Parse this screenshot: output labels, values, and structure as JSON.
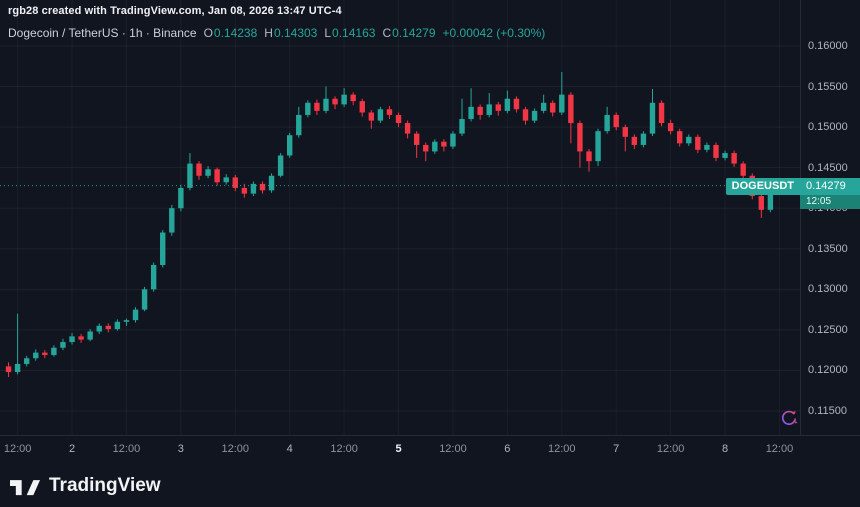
{
  "watermark": "rgb28 created with TradingView.com, Jan 08, 2026 13:47 UTC-4",
  "legend": {
    "title": "Dogecoin / TetherUS · 1h · Binance",
    "o_label": "O",
    "o": "0.14238",
    "h_label": "H",
    "h": "0.14303",
    "l_label": "L",
    "l": "0.14163",
    "c_label": "C",
    "c": "0.14279",
    "change": "+0.00042 (+0.30%)"
  },
  "price_label": {
    "symbol": "DOGEUSDT",
    "price": "0.14279",
    "countdown": "12:05"
  },
  "logo": {
    "text": "TradingView"
  },
  "colors": {
    "background": "#10151f",
    "up": "#26a69a",
    "down": "#f23645",
    "axis_text": "#b2b5be",
    "badge_green": "#26a69a",
    "countdown_green": "#1c8276",
    "refresh_pink": "#e0447e",
    "refresh_purple": "#7b5cff"
  },
  "chart_data": {
    "type": "candlestick",
    "title": "Dogecoin / TetherUS",
    "symbol": "DOGEUSDT",
    "exchange": "Binance",
    "interval": "1h",
    "last_price": 0.14279,
    "open": 0.14238,
    "high": 0.14303,
    "low": 0.14163,
    "close": 0.14279,
    "change_abs": 0.00042,
    "change_pct": 0.3,
    "up_color": "#26a69a",
    "down_color": "#f23645",
    "grid": true,
    "ylim": [
      0.11204,
      0.16567
    ],
    "y_ticks": [
      "0.16000",
      "0.15500",
      "0.15000",
      "0.14500",
      "0.14000",
      "0.13500",
      "0.13000",
      "0.12500",
      "0.12000",
      "0.11500"
    ],
    "x_labels": [
      {
        "i": 1,
        "t": "12:00",
        "s": 0
      },
      {
        "i": 7,
        "t": "2",
        "s": 1
      },
      {
        "i": 13,
        "t": "12:00",
        "s": 0
      },
      {
        "i": 19,
        "t": "3",
        "s": 1
      },
      {
        "i": 25,
        "t": "12:00",
        "s": 0
      },
      {
        "i": 31,
        "t": "4",
        "s": 1
      },
      {
        "i": 37,
        "t": "12:00",
        "s": 0
      },
      {
        "i": 43,
        "t": "5",
        "s": 2
      },
      {
        "i": 49,
        "t": "12:00",
        "s": 0
      },
      {
        "i": 55,
        "t": "6",
        "s": 1
      },
      {
        "i": 61,
        "t": "12:00",
        "s": 0
      },
      {
        "i": 67,
        "t": "7",
        "s": 1
      },
      {
        "i": 73,
        "t": "12:00",
        "s": 0
      },
      {
        "i": 79,
        "t": "8",
        "s": 1
      },
      {
        "i": 85,
        "t": "12:00",
        "s": 0
      }
    ],
    "candles_format": [
      "open",
      "high",
      "low",
      "close"
    ],
    "candles": [
      [
        0.1205,
        0.121,
        0.1192,
        0.1198
      ],
      [
        0.1198,
        0.127,
        0.1195,
        0.1208
      ],
      [
        0.1208,
        0.1218,
        0.1205,
        0.1215
      ],
      [
        0.1215,
        0.1226,
        0.1212,
        0.1222
      ],
      [
        0.1222,
        0.1225,
        0.1215,
        0.1219
      ],
      [
        0.1219,
        0.1231,
        0.1217,
        0.1228
      ],
      [
        0.1228,
        0.1239,
        0.1225,
        0.1235
      ],
      [
        0.1235,
        0.1246,
        0.1232,
        0.1242
      ],
      [
        0.1242,
        0.1245,
        0.1234,
        0.1238
      ],
      [
        0.1238,
        0.1251,
        0.1236,
        0.1248
      ],
      [
        0.1248,
        0.1258,
        0.1245,
        0.1255
      ],
      [
        0.1255,
        0.1258,
        0.1247,
        0.1251
      ],
      [
        0.1251,
        0.1263,
        0.1249,
        0.126
      ],
      [
        0.126,
        0.1264,
        0.1255,
        0.1262
      ],
      [
        0.1262,
        0.1278,
        0.1259,
        0.1275
      ],
      [
        0.1275,
        0.1303,
        0.1273,
        0.13
      ],
      [
        0.13,
        0.1333,
        0.1297,
        0.133
      ],
      [
        0.133,
        0.1373,
        0.1327,
        0.137
      ],
      [
        0.137,
        0.1404,
        0.1366,
        0.14
      ],
      [
        0.14,
        0.1429,
        0.1396,
        0.1425
      ],
      [
        0.1425,
        0.1468,
        0.1422,
        0.1455
      ],
      [
        0.1455,
        0.1458,
        0.1435,
        0.144
      ],
      [
        0.144,
        0.1452,
        0.1437,
        0.1448
      ],
      [
        0.1448,
        0.145,
        0.1428,
        0.1432
      ],
      [
        0.1432,
        0.1442,
        0.1429,
        0.1438
      ],
      [
        0.1438,
        0.1441,
        0.1421,
        0.1425
      ],
      [
        0.1425,
        0.143,
        0.1413,
        0.1418
      ],
      [
        0.1418,
        0.1433,
        0.1415,
        0.143
      ],
      [
        0.143,
        0.1433,
        0.1418,
        0.1422
      ],
      [
        0.1422,
        0.1443,
        0.1419,
        0.144
      ],
      [
        0.144,
        0.1468,
        0.1438,
        0.1465
      ],
      [
        0.1465,
        0.1493,
        0.1462,
        0.149
      ],
      [
        0.149,
        0.1525,
        0.1487,
        0.1515
      ],
      [
        0.1515,
        0.1533,
        0.1512,
        0.153
      ],
      [
        0.153,
        0.1534,
        0.1515,
        0.152
      ],
      [
        0.152,
        0.155,
        0.1517,
        0.1535
      ],
      [
        0.1535,
        0.1538,
        0.1522,
        0.1528
      ],
      [
        0.1528,
        0.1548,
        0.1525,
        0.154
      ],
      [
        0.154,
        0.1543,
        0.1527,
        0.1532
      ],
      [
        0.1532,
        0.1535,
        0.1513,
        0.1518
      ],
      [
        0.1518,
        0.1521,
        0.1498,
        0.1508
      ],
      [
        0.1508,
        0.1525,
        0.1505,
        0.1522
      ],
      [
        0.1522,
        0.1526,
        0.151,
        0.1515
      ],
      [
        0.1515,
        0.1518,
        0.15,
        0.1505
      ],
      [
        0.1505,
        0.1508,
        0.1486,
        0.1492
      ],
      [
        0.1492,
        0.1495,
        0.1462,
        0.1478
      ],
      [
        0.1478,
        0.1481,
        0.1458,
        0.147
      ],
      [
        0.147,
        0.1485,
        0.1467,
        0.1482
      ],
      [
        0.1482,
        0.1485,
        0.147,
        0.1476
      ],
      [
        0.1476,
        0.1495,
        0.1473,
        0.1492
      ],
      [
        0.1492,
        0.1535,
        0.1489,
        0.151
      ],
      [
        0.151,
        0.1548,
        0.1507,
        0.1525
      ],
      [
        0.1525,
        0.1528,
        0.1509,
        0.1515
      ],
      [
        0.1515,
        0.1542,
        0.1512,
        0.1528
      ],
      [
        0.1528,
        0.1531,
        0.1514,
        0.152
      ],
      [
        0.152,
        0.1545,
        0.1517,
        0.1535
      ],
      [
        0.1535,
        0.1538,
        0.1518,
        0.1522
      ],
      [
        0.1522,
        0.1525,
        0.1503,
        0.1508
      ],
      [
        0.1508,
        0.1523,
        0.1505,
        0.152
      ],
      [
        0.152,
        0.154,
        0.1517,
        0.153
      ],
      [
        0.153,
        0.1533,
        0.1513,
        0.1518
      ],
      [
        0.1518,
        0.1568,
        0.1515,
        0.154
      ],
      [
        0.154,
        0.1543,
        0.148,
        0.1505
      ],
      [
        0.1505,
        0.1508,
        0.145,
        0.147
      ],
      [
        0.147,
        0.1473,
        0.1445,
        0.1458
      ],
      [
        0.1458,
        0.1498,
        0.1452,
        0.1495
      ],
      [
        0.1495,
        0.1525,
        0.1492,
        0.1515
      ],
      [
        0.1515,
        0.1518,
        0.1496,
        0.15
      ],
      [
        0.15,
        0.1503,
        0.147,
        0.1488
      ],
      [
        0.1488,
        0.1491,
        0.1473,
        0.1478
      ],
      [
        0.1478,
        0.1495,
        0.1475,
        0.1492
      ],
      [
        0.1492,
        0.1547,
        0.1489,
        0.153
      ],
      [
        0.153,
        0.1533,
        0.1501,
        0.1505
      ],
      [
        0.1505,
        0.1509,
        0.1491,
        0.1495
      ],
      [
        0.1495,
        0.1498,
        0.1476,
        0.148
      ],
      [
        0.148,
        0.1491,
        0.1477,
        0.1488
      ],
      [
        0.1488,
        0.1491,
        0.1468,
        0.1472
      ],
      [
        0.1472,
        0.1481,
        0.1469,
        0.1478
      ],
      [
        0.1478,
        0.1481,
        0.1458,
        0.1462
      ],
      [
        0.1462,
        0.1471,
        0.1459,
        0.1468
      ],
      [
        0.1468,
        0.1471,
        0.1451,
        0.1455
      ],
      [
        0.1455,
        0.1458,
        0.1436,
        0.144
      ],
      [
        0.144,
        0.1443,
        0.1411,
        0.1415
      ],
      [
        0.1415,
        0.1418,
        0.1388,
        0.1398
      ],
      [
        0.1398,
        0.1424,
        0.1395,
        0.142
      ],
      [
        0.14238,
        0.14303,
        0.14163,
        0.14279
      ]
    ]
  }
}
